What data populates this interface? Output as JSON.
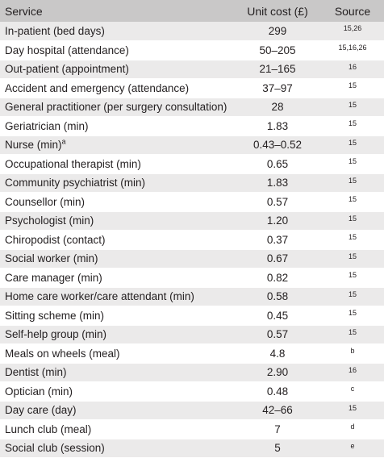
{
  "header": {
    "service": "Service",
    "unit_cost": "Unit cost (£)",
    "source": "Source"
  },
  "rows": [
    {
      "service": "In-patient (bed days)",
      "cost": "299",
      "source": "15,26"
    },
    {
      "service": "Day hospital (attendance)",
      "cost": "50–205",
      "source": "15,16,26"
    },
    {
      "service": "Out-patient (appointment)",
      "cost": "21–165",
      "source": "16"
    },
    {
      "service": "Accident and emergency (attendance)",
      "cost": "37–97",
      "source": "15"
    },
    {
      "service": "General practitioner (per surgery consultation)",
      "cost": "28",
      "source": "15"
    },
    {
      "service": "Geriatrician (min)",
      "cost": "1.83",
      "source": "15"
    },
    {
      "service": "Nurse (min)",
      "service_sup": "a",
      "cost": "0.43–0.52",
      "source": "15"
    },
    {
      "service": "Occupational therapist (min)",
      "cost": "0.65",
      "source": "15"
    },
    {
      "service": "Community psychiatrist (min)",
      "cost": "1.83",
      "source": "15"
    },
    {
      "service": "Counsellor (min)",
      "cost": "0.57",
      "source": "15"
    },
    {
      "service": "Psychologist (min)",
      "cost": "1.20",
      "source": "15"
    },
    {
      "service": "Chiropodist (contact)",
      "cost": "0.37",
      "source": "15"
    },
    {
      "service": "Social worker (min)",
      "cost": "0.67",
      "source": "15"
    },
    {
      "service": "Care manager (min)",
      "cost": "0.82",
      "source": "15"
    },
    {
      "service": "Home care worker/care attendant (min)",
      "cost": "0.58",
      "source": "15"
    },
    {
      "service": "Sitting scheme (min)",
      "cost": "0.45",
      "source": "15"
    },
    {
      "service": "Self-help group (min)",
      "cost": "0.57",
      "source": "15"
    },
    {
      "service": "Meals on wheels (meal)",
      "cost": "4.8",
      "source": "b"
    },
    {
      "service": "Dentist (min)",
      "cost": "2.90",
      "source": "16"
    },
    {
      "service": "Optician (min)",
      "cost": "0.48",
      "source": "c"
    },
    {
      "service": "Day care (day)",
      "cost": "42–66",
      "source": "15"
    },
    {
      "service": "Lunch club (meal)",
      "cost": "7",
      "source": "d"
    },
    {
      "service": "Social club (session)",
      "cost": "5",
      "source": "e"
    }
  ]
}
